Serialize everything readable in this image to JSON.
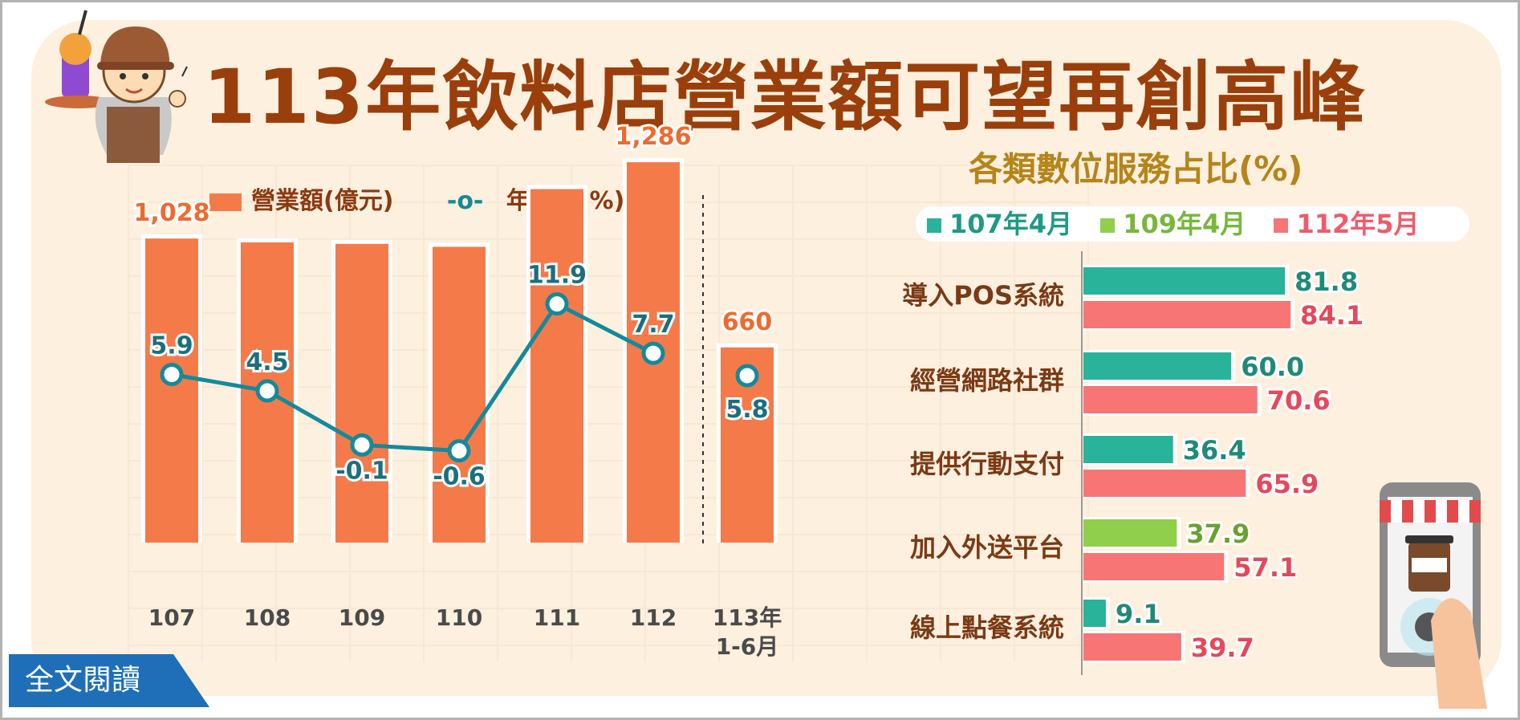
{
  "header": {
    "title": "113年飲料店營業額可望再創高峰"
  },
  "colors": {
    "bar": "#f47a4a",
    "line": "#138a9b",
    "s107": "#28b39a",
    "s109": "#8fcf4b",
    "s112": "#f77575",
    "title": "#9a3f0b",
    "subtitle": "#b5851a"
  },
  "footer": {
    "read_more": "全文閱讀"
  },
  "chart_data": [
    {
      "type": "bar",
      "categories": [
        "107",
        "108",
        "109",
        "110",
        "111",
        "112",
        "113年\n1-6月"
      ],
      "series": [
        {
          "name": "營業額(億元)",
          "type": "bar",
          "values": [
            1028,
            1015,
            1010,
            1000,
            1195,
            1286,
            660
          ],
          "labels": [
            "1,028",
            "",
            "",
            "",
            "",
            "1,286",
            "660"
          ]
        },
        {
          "name": "年增率(%)",
          "type": "line",
          "values": [
            5.9,
            4.5,
            -0.1,
            -0.6,
            11.9,
            7.7,
            5.8
          ],
          "labels": [
            "5.9",
            "4.5",
            "-0.1",
            "-0.6",
            "11.9",
            "7.7",
            "5.8"
          ]
        }
      ],
      "legend": [
        "營業額(億元)",
        "年增率(%)"
      ]
    },
    {
      "type": "bar",
      "orientation": "horizontal",
      "title": "各類數位服務占比(%)",
      "legend": [
        "107年4月",
        "109年4月",
        "112年5月"
      ],
      "categories": [
        "導入POS系統",
        "經營網路社群",
        "提供行動支付",
        "加入外送平台",
        "線上點餐系統"
      ],
      "series": [
        {
          "name": "107年4月",
          "values": [
            81.8,
            60.0,
            36.4,
            null,
            9.1
          ],
          "labels": [
            "81.8",
            "60.0",
            "36.4",
            "",
            "9.1"
          ]
        },
        {
          "name": "109年4月",
          "values": [
            null,
            null,
            null,
            37.9,
            null
          ],
          "labels": [
            "",
            "",
            "",
            "37.9",
            ""
          ]
        },
        {
          "name": "112年5月",
          "values": [
            84.1,
            70.6,
            65.9,
            57.1,
            39.7
          ],
          "labels": [
            "84.1",
            "70.6",
            "65.9",
            "57.1",
            "39.7"
          ]
        }
      ]
    }
  ]
}
